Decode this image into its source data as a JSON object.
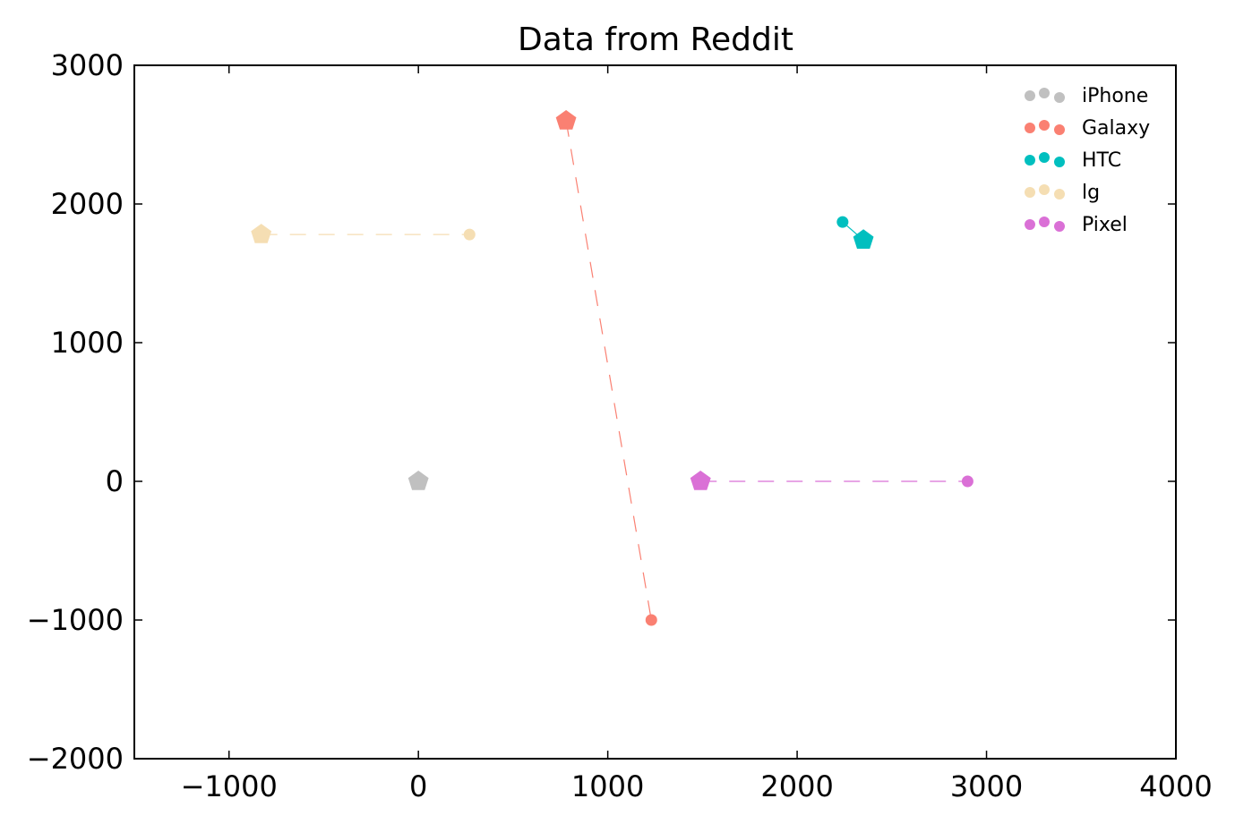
{
  "chart_data": {
    "type": "scatter",
    "title": "Data from Reddit",
    "xlabel": "",
    "ylabel": "",
    "xlim": [
      -1500,
      4000
    ],
    "ylim": [
      -2000,
      3000
    ],
    "x_ticks": [
      {
        "value": -1000,
        "label": "−1000"
      },
      {
        "value": 0,
        "label": "0"
      },
      {
        "value": 1000,
        "label": "1000"
      },
      {
        "value": 2000,
        "label": "2000"
      },
      {
        "value": 3000,
        "label": "3000"
      },
      {
        "value": 4000,
        "label": "4000"
      }
    ],
    "y_ticks": [
      {
        "value": -2000,
        "label": "−2000"
      },
      {
        "value": -1000,
        "label": "−1000"
      },
      {
        "value": 0,
        "label": "0"
      },
      {
        "value": 1000,
        "label": "1000"
      },
      {
        "value": 2000,
        "label": "2000"
      },
      {
        "value": 3000,
        "label": "3000"
      }
    ],
    "grid": false,
    "legend_position": "top-right",
    "series": [
      {
        "name": "iPhone",
        "color": "#c0c0c0",
        "pentagon": [
          0,
          0
        ],
        "circle": null,
        "line_style": "dashed"
      },
      {
        "name": "Galaxy",
        "color": "#fa8072",
        "pentagon": [
          780,
          2600
        ],
        "circle": [
          1230,
          -1000
        ],
        "line_style": "dashed"
      },
      {
        "name": "HTC",
        "color": "#00bfbf",
        "pentagon": [
          2350,
          1740
        ],
        "circle": [
          2240,
          1870
        ],
        "line_style": "solid"
      },
      {
        "name": "lg",
        "color": "#f5deb3",
        "pentagon": [
          -830,
          1780
        ],
        "circle": [
          270,
          1780
        ],
        "line_style": "dashed"
      },
      {
        "name": "Pixel",
        "color": "#da70d6",
        "pentagon": [
          1490,
          0
        ],
        "circle": [
          2900,
          0
        ],
        "line_style": "dashed"
      }
    ]
  }
}
